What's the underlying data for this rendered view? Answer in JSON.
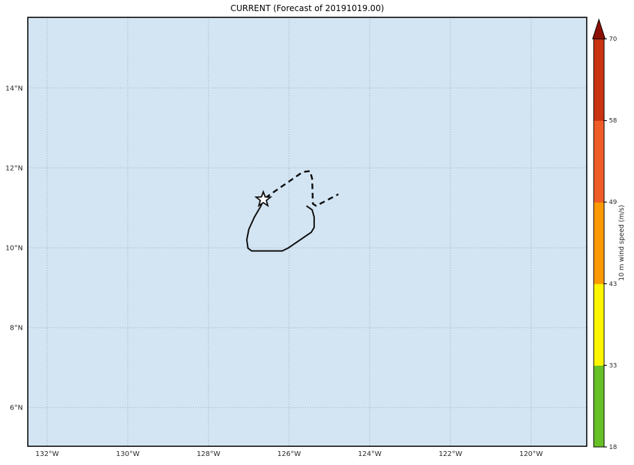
{
  "title": "CURRENT (Forecast of 20191019.00)",
  "axes": {
    "x_tick_labels": [
      "132°W",
      "130°W",
      "128°W",
      "126°W",
      "124°W",
      "122°W",
      "120°W"
    ],
    "x_tick_lons_w": [
      132,
      130,
      128,
      126,
      124,
      122,
      120
    ],
    "y_tick_labels": [
      "14°N",
      "12°N",
      "10°N",
      "8°N",
      "6°N"
    ],
    "y_tick_lats_n": [
      14,
      12,
      10,
      8,
      6
    ]
  },
  "colorbar": {
    "label": "10 m wind speed (m/s)",
    "tick_labels": [
      "18",
      "33",
      "43",
      "49",
      "58",
      "70"
    ]
  },
  "colors": {
    "plot_bg": "#d3e5f3",
    "grid": "#8094a6",
    "axis_edge": "#000000",
    "tick_label": "#262626",
    "track": "#111111",
    "star_fill": "#ffffff"
  },
  "chart_data": {
    "type": "line",
    "title": "CURRENT (Forecast of 20191019.00)",
    "xlabel": "",
    "ylabel": "",
    "grid": true,
    "xlim_deg_w": [
      132.48,
      118.62
    ],
    "ylim_deg_n": [
      5.03,
      15.77
    ],
    "series": [
      {
        "name": "past_track_solid",
        "style": "solid",
        "points_lon_w_lat_n": [
          [
            125.57,
            11.05
          ],
          [
            125.43,
            10.95
          ],
          [
            125.38,
            10.77
          ],
          [
            125.38,
            10.51
          ],
          [
            125.45,
            10.39
          ],
          [
            126.03,
            9.99
          ],
          [
            126.17,
            9.92
          ],
          [
            126.93,
            9.92
          ],
          [
            127.02,
            9.99
          ],
          [
            127.05,
            10.2
          ],
          [
            127.0,
            10.46
          ],
          [
            126.86,
            10.77
          ],
          [
            126.72,
            11.01
          ],
          [
            126.64,
            11.17
          ]
        ]
      },
      {
        "name": "forecast_track_dashed",
        "style": "dashed",
        "points_lon_w_lat_n": [
          [
            126.59,
            11.25
          ],
          [
            125.66,
            11.9
          ],
          [
            125.48,
            11.92
          ],
          [
            125.43,
            11.73
          ],
          [
            125.41,
            11.1
          ],
          [
            125.33,
            11.05
          ],
          [
            124.78,
            11.34
          ]
        ]
      }
    ],
    "marker": {
      "name": "current_position_star",
      "lon_w": 126.64,
      "lat_n": 11.21
    },
    "colorbar": {
      "label": "10 m wind speed (m/s)",
      "boundaries": [
        18,
        33,
        43,
        49,
        58,
        70
      ],
      "colors": [
        "#67c026",
        "#fcf500",
        "#fb9a02",
        "#ef5c28",
        "#c93311"
      ],
      "extend_max_color": "#8d1006",
      "legend_position": "right"
    }
  }
}
